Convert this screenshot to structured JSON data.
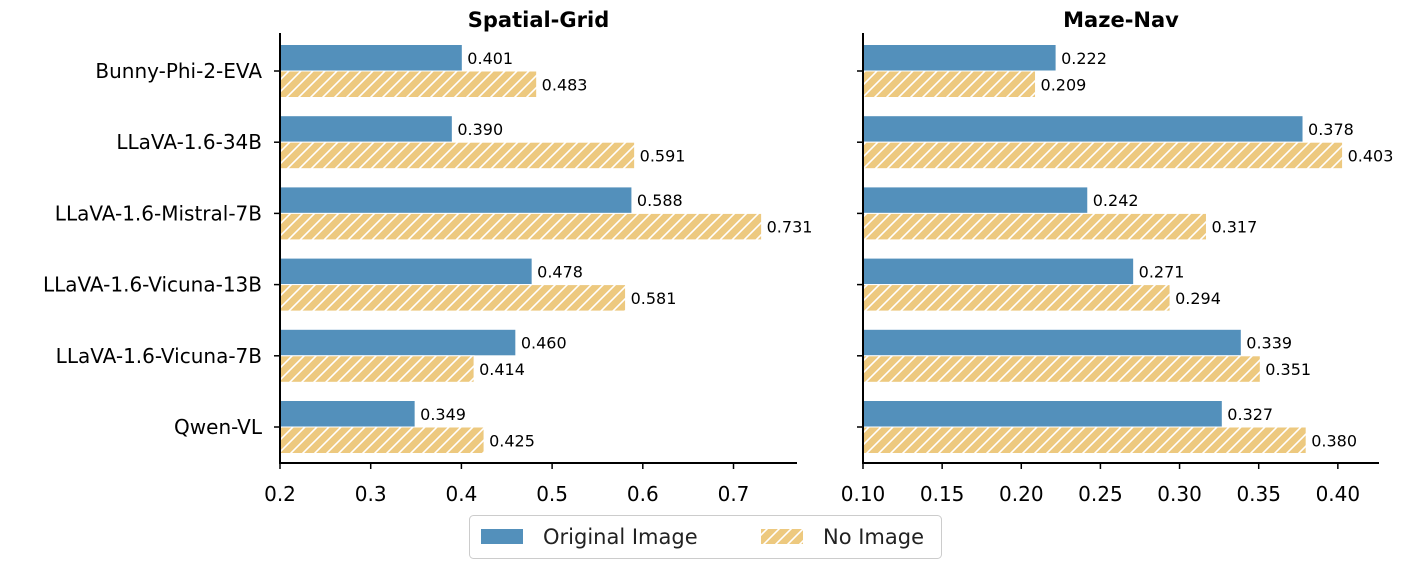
{
  "chart_data": [
    {
      "type": "bar",
      "orientation": "horizontal",
      "title": "Spatial-Grid",
      "categories": [
        "Bunny-Phi-2-EVA",
        "LLaVA-1.6-34B",
        "LLaVA-1.6-Mistral-7B",
        "LLaVA-1.6-Vicuna-13B",
        "LLaVA-1.6-Vicuna-7B",
        "Qwen-VL"
      ],
      "series": [
        {
          "name": "Original Image",
          "values": [
            0.401,
            0.39,
            0.588,
            0.478,
            0.46,
            0.349
          ],
          "labels": [
            "0.401",
            "0.390",
            "0.588",
            "0.478",
            "0.460",
            "0.349"
          ],
          "color": "#5390bb",
          "pattern": "solid"
        },
        {
          "name": "No Image",
          "values": [
            0.483,
            0.591,
            0.731,
            0.581,
            0.414,
            0.425
          ],
          "labels": [
            "0.483",
            "0.591",
            "0.731",
            "0.581",
            "0.414",
            "0.425"
          ],
          "color": "#edc97f",
          "pattern": "hatched"
        }
      ],
      "xlim": [
        0.2,
        0.77
      ],
      "xticks": [
        0.2,
        0.3,
        0.4,
        0.5,
        0.6,
        0.7
      ],
      "xtick_labels": [
        "0.2",
        "0.3",
        "0.4",
        "0.5",
        "0.6",
        "0.7"
      ],
      "show_category_labels": true,
      "grid": false
    },
    {
      "type": "bar",
      "orientation": "horizontal",
      "title": "Maze-Nav",
      "categories": [
        "Bunny-Phi-2-EVA",
        "LLaVA-1.6-34B",
        "LLaVA-1.6-Mistral-7B",
        "LLaVA-1.6-Vicuna-13B",
        "LLaVA-1.6-Vicuna-7B",
        "Qwen-VL"
      ],
      "series": [
        {
          "name": "Original Image",
          "values": [
            0.222,
            0.378,
            0.242,
            0.271,
            0.339,
            0.327
          ],
          "labels": [
            "0.222",
            "0.378",
            "0.242",
            "0.271",
            "0.339",
            "0.327"
          ],
          "color": "#5390bb",
          "pattern": "solid"
        },
        {
          "name": "No Image",
          "values": [
            0.209,
            0.403,
            0.317,
            0.294,
            0.351,
            0.38
          ],
          "labels": [
            "0.209",
            "0.403",
            "0.317",
            "0.294",
            "0.351",
            "0.380"
          ],
          "color": "#edc97f",
          "pattern": "hatched"
        }
      ],
      "xlim": [
        0.1,
        0.426
      ],
      "xticks": [
        0.1,
        0.15,
        0.2,
        0.25,
        0.3,
        0.35,
        0.4
      ],
      "xtick_labels": [
        "0.10",
        "0.15",
        "0.20",
        "0.25",
        "0.30",
        "0.35",
        "0.40"
      ],
      "show_category_labels": false,
      "grid": false
    }
  ],
  "legend": {
    "placement": "bottom-center",
    "items": [
      {
        "label": "Original Image",
        "color": "#5390bb",
        "pattern": "solid"
      },
      {
        "label": "No Image",
        "color": "#edc97f",
        "pattern": "hatched"
      }
    ]
  }
}
